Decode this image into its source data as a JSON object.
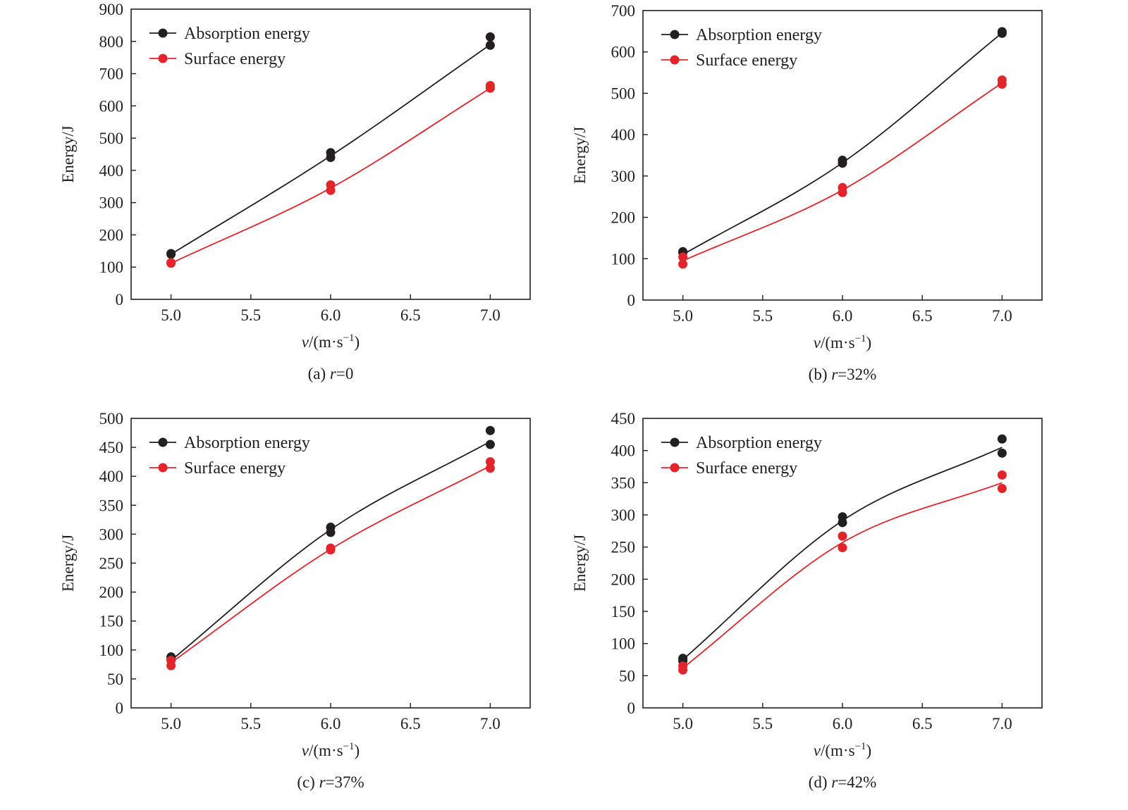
{
  "colors": {
    "absorption": "#231f20",
    "surface": "#e3242b",
    "axis": "#231f20"
  },
  "chart_data": [
    {
      "type": "line",
      "panel": "a",
      "caption_prefix": "(a) ",
      "caption_var": "r",
      "caption_suffix": "=0",
      "xlabel_var": "v",
      "xlabel_rest": "/(m·s",
      "xlabel_sup": "−1",
      "xlabel_close": ")",
      "ylabel": "Energy/J",
      "xlim": [
        4.75,
        7.25
      ],
      "ylim": [
        0,
        900
      ],
      "xticks": [
        5.0,
        5.5,
        6.0,
        6.5,
        7.0
      ],
      "xtick_labels": [
        "5.0",
        "5.5",
        "6.0",
        "6.5",
        "7.0"
      ],
      "yticks": [
        0,
        100,
        200,
        300,
        400,
        500,
        600,
        700,
        800,
        900
      ],
      "ytick_labels": [
        "0",
        "100",
        "200",
        "300",
        "400",
        "500",
        "600",
        "700",
        "800",
        "900"
      ],
      "legend_position": "top-left",
      "grid": false,
      "series": [
        {
          "name": "Absorption energy",
          "color_key": "absorption",
          "x": [
            5.0,
            6.0,
            7.0
          ],
          "points": [
            [
              5.0,
              142
            ],
            [
              5.0,
              140
            ],
            [
              6.0,
              455
            ],
            [
              6.0,
              440
            ],
            [
              7.0,
              814
            ],
            [
              7.0,
              788
            ]
          ],
          "curve": [
            140,
            445,
            790
          ]
        },
        {
          "name": "Surface energy",
          "color_key": "surface",
          "x": [
            5.0,
            6.0,
            7.0
          ],
          "points": [
            [
              5.0,
              114
            ],
            [
              5.0,
              112
            ],
            [
              6.0,
              355
            ],
            [
              6.0,
              338
            ],
            [
              7.0,
              663
            ],
            [
              7.0,
              655
            ]
          ],
          "curve": [
            112,
            345,
            655
          ]
        }
      ]
    },
    {
      "type": "line",
      "panel": "b",
      "caption_prefix": "(b) ",
      "caption_var": "r",
      "caption_suffix": "=32%",
      "xlabel_var": "v",
      "xlabel_rest": "/(m·s",
      "xlabel_sup": "−1",
      "xlabel_close": ")",
      "ylabel": "Energy/J",
      "xlim": [
        4.75,
        7.25
      ],
      "ylim": [
        0,
        700
      ],
      "xticks": [
        5.0,
        5.5,
        6.0,
        6.5,
        7.0
      ],
      "xtick_labels": [
        "5.0",
        "5.5",
        "6.0",
        "6.5",
        "7.0"
      ],
      "yticks": [
        0,
        100,
        200,
        300,
        400,
        500,
        600,
        700
      ],
      "ytick_labels": [
        "0",
        "100",
        "200",
        "300",
        "400",
        "500",
        "600",
        "700"
      ],
      "legend_position": "top-left",
      "grid": false,
      "series": [
        {
          "name": "Absorption energy",
          "color_key": "absorption",
          "x": [
            5.0,
            6.0,
            7.0
          ],
          "points": [
            [
              5.0,
              117
            ],
            [
              5.0,
              115
            ],
            [
              6.0,
              338
            ],
            [
              6.0,
              331
            ],
            [
              7.0,
              649
            ],
            [
              7.0,
              645
            ]
          ],
          "curve": [
            110,
            332,
            646
          ]
        },
        {
          "name": "Surface energy",
          "color_key": "surface",
          "x": [
            5.0,
            6.0,
            7.0
          ],
          "points": [
            [
              5.0,
              104
            ],
            [
              5.0,
              87
            ],
            [
              6.0,
              272
            ],
            [
              6.0,
              260
            ],
            [
              7.0,
              532
            ],
            [
              7.0,
              522
            ]
          ],
          "curve": [
            95,
            266,
            525
          ]
        }
      ]
    },
    {
      "type": "line",
      "panel": "c",
      "caption_prefix": "(c) ",
      "caption_var": "r",
      "caption_suffix": "=37%",
      "xlabel_var": "v",
      "xlabel_rest": "/(m·s",
      "xlabel_sup": "−1",
      "xlabel_close": ")",
      "ylabel": "Energy/J",
      "xlim": [
        4.75,
        7.25
      ],
      "ylim": [
        0,
        500
      ],
      "xticks": [
        5.0,
        5.5,
        6.0,
        6.5,
        7.0
      ],
      "xtick_labels": [
        "5.0",
        "5.5",
        "6.0",
        "6.5",
        "7.0"
      ],
      "yticks": [
        0,
        50,
        100,
        150,
        200,
        250,
        300,
        350,
        400,
        450,
        500
      ],
      "ytick_labels": [
        "0",
        "50",
        "100",
        "150",
        "200",
        "250",
        "300",
        "350",
        "400",
        "450",
        "500"
      ],
      "legend_position": "top-left",
      "grid": false,
      "series": [
        {
          "name": "Absorption energy",
          "color_key": "absorption",
          "x": [
            5.0,
            6.0,
            7.0
          ],
          "points": [
            [
              5.0,
              88
            ],
            [
              5.0,
              84
            ],
            [
              6.0,
              312
            ],
            [
              6.0,
              303
            ],
            [
              7.0,
              479
            ],
            [
              7.0,
              455
            ]
          ],
          "curve": [
            82,
            308,
            460
          ]
        },
        {
          "name": "Surface energy",
          "color_key": "surface",
          "x": [
            5.0,
            6.0,
            7.0
          ],
          "points": [
            [
              5.0,
              82
            ],
            [
              5.0,
              73
            ],
            [
              6.0,
              276
            ],
            [
              6.0,
              273
            ],
            [
              7.0,
              425
            ],
            [
              7.0,
              414
            ]
          ],
          "curve": [
            78,
            274,
            418
          ]
        }
      ]
    },
    {
      "type": "line",
      "panel": "d",
      "caption_prefix": "(d) ",
      "caption_var": "r",
      "caption_suffix": "=42%",
      "xlabel_var": "v",
      "xlabel_rest": "/(m·s",
      "xlabel_sup": "−1",
      "xlabel_close": ")",
      "ylabel": "Energy/J",
      "xlim": [
        4.75,
        7.25
      ],
      "ylim": [
        0,
        450
      ],
      "xticks": [
        5.0,
        5.5,
        6.0,
        6.5,
        7.0
      ],
      "xtick_labels": [
        "5.0",
        "5.5",
        "6.0",
        "6.5",
        "7.0"
      ],
      "yticks": [
        0,
        50,
        100,
        150,
        200,
        250,
        300,
        350,
        400,
        450
      ],
      "ytick_labels": [
        "0",
        "50",
        "100",
        "150",
        "200",
        "250",
        "300",
        "350",
        "400",
        "450"
      ],
      "legend_position": "top-left",
      "grid": false,
      "series": [
        {
          "name": "Absorption energy",
          "color_key": "absorption",
          "x": [
            5.0,
            6.0,
            7.0
          ],
          "points": [
            [
              5.0,
              77
            ],
            [
              5.0,
              73
            ],
            [
              6.0,
              297
            ],
            [
              6.0,
              288
            ],
            [
              7.0,
              418
            ],
            [
              7.0,
              396
            ]
          ],
          "curve": [
            75,
            291,
            405
          ]
        },
        {
          "name": "Surface energy",
          "color_key": "surface",
          "x": [
            5.0,
            6.0,
            7.0
          ],
          "points": [
            [
              5.0,
              65
            ],
            [
              5.0,
              59
            ],
            [
              6.0,
              267
            ],
            [
              6.0,
              249
            ],
            [
              7.0,
              362
            ],
            [
              7.0,
              341
            ]
          ],
          "curve": [
            62,
            257,
            350
          ]
        }
      ]
    }
  ]
}
